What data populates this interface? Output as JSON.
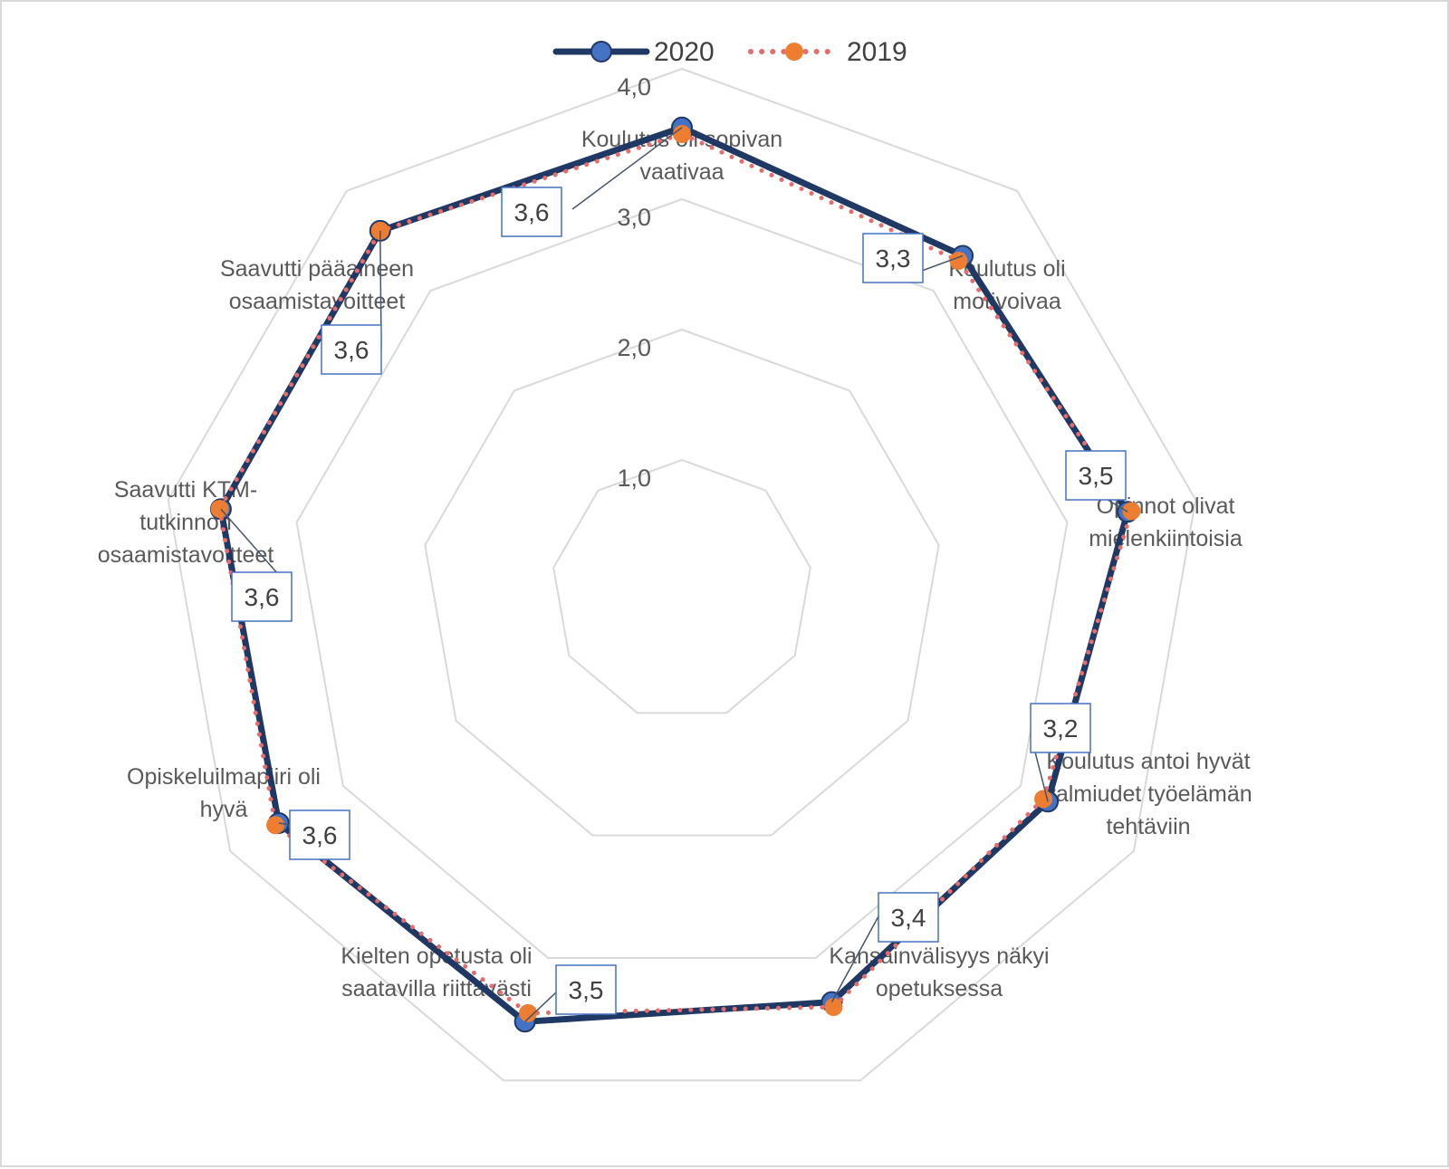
{
  "chart_data": {
    "type": "radar",
    "categories": [
      [
        "Koulutus oli sopivan",
        "vaativaa"
      ],
      [
        "Koulutus oli",
        "motivoivaa"
      ],
      [
        "Opinnot olivat",
        "mielenkiintoisia"
      ],
      [
        "Koulutus antoi hyvät",
        "valmiudet työelämän",
        "tehtäviin"
      ],
      [
        "Kansainvälisyys näkyi",
        "opetuksessa"
      ],
      [
        "Kielten opetusta oli",
        "saatavilla riittävästi"
      ],
      [
        "Opiskeluilmapiiri oli",
        "hyvä"
      ],
      [
        "Saavutti KTM-",
        "tutkinnon",
        "osaamistavoitteet"
      ],
      [
        "Saavutti pääaineen",
        "osaamistavoitteet"
      ]
    ],
    "series": [
      {
        "name": "2020",
        "values": [
          3.55,
          3.35,
          3.47,
          3.24,
          3.36,
          3.52,
          3.57,
          3.59,
          3.6
        ],
        "color": "#1f3864",
        "marker": "#4472c4",
        "style": "solid"
      },
      {
        "name": "2019",
        "values": [
          3.5,
          3.3,
          3.5,
          3.2,
          3.4,
          3.45,
          3.6,
          3.6,
          3.6
        ],
        "color": "#e46c6c",
        "marker": "#ed7d31",
        "style": "dotted"
      }
    ],
    "data_labels": [
      "3,6",
      "3,3",
      "3,5",
      "3,2",
      "3,4",
      "3,5",
      "3,6",
      "3,6",
      "3,6"
    ],
    "r_ticks": [
      "1,0",
      "2,0",
      "3,0",
      "4,0"
    ],
    "rlim": [
      0,
      4
    ],
    "grid": true,
    "legend": "top-center"
  }
}
